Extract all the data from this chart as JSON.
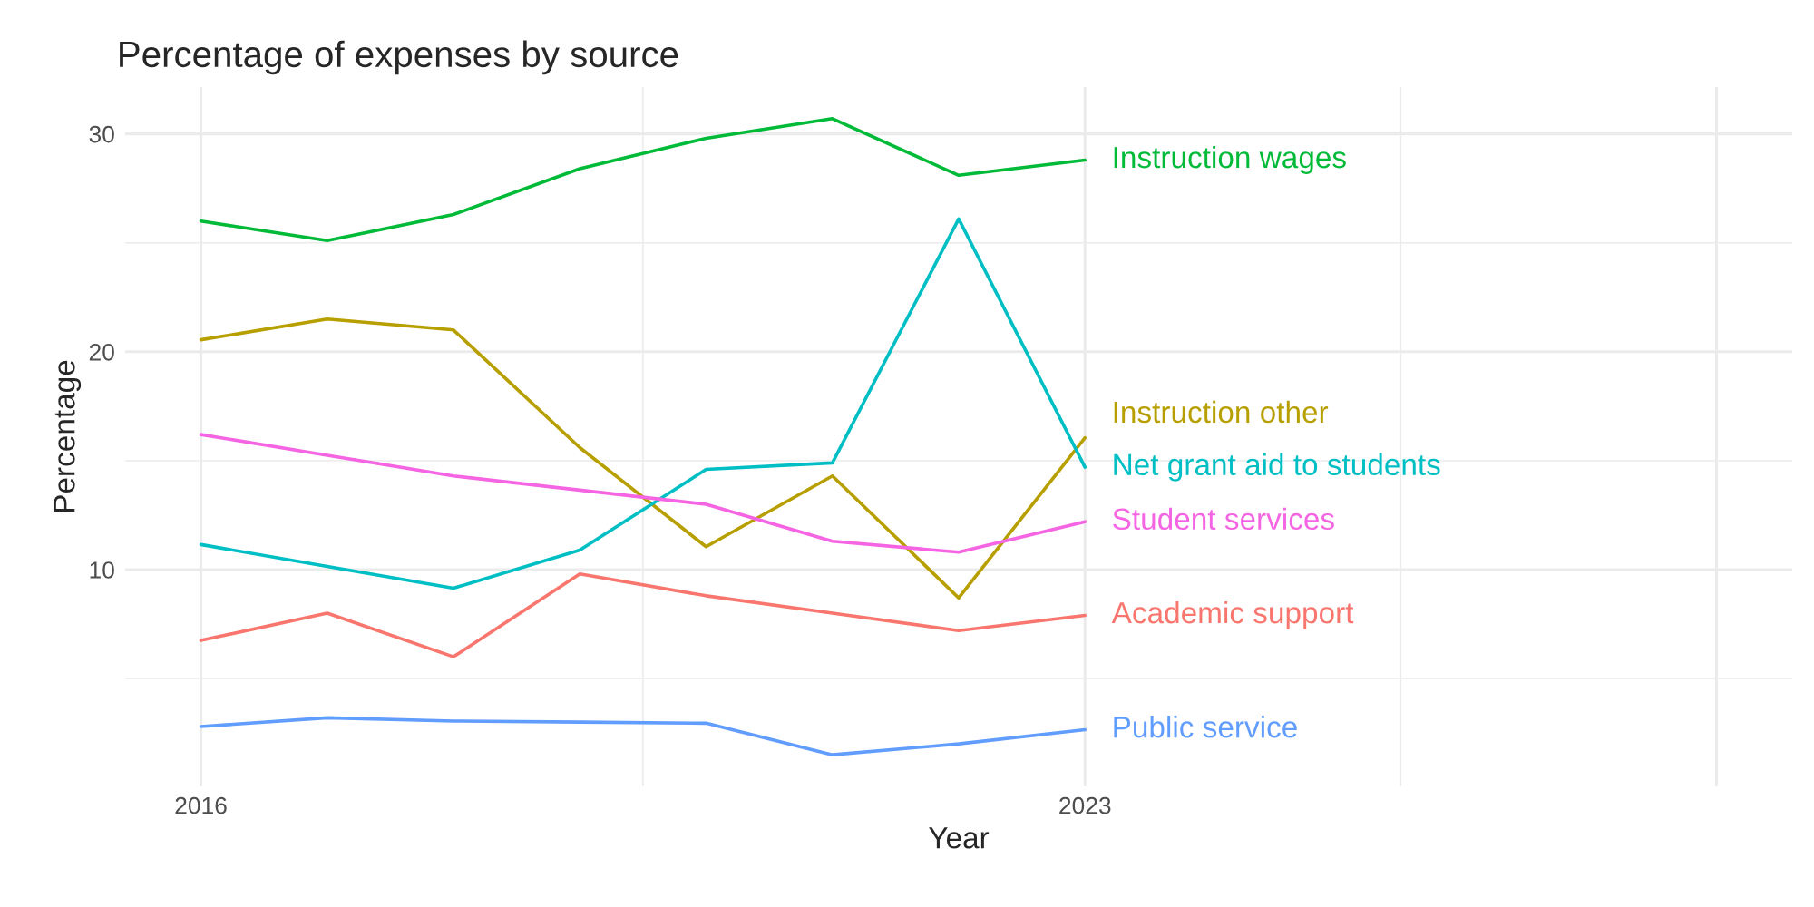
{
  "chart_data": {
    "type": "line",
    "title": "Percentage of expenses by source",
    "xlabel": "Year",
    "ylabel": "Percentage",
    "x": [
      2016,
      2017,
      2018,
      2019,
      2020,
      2021,
      2022,
      2023
    ],
    "xlim": [
      2015.4,
      2028.6
    ],
    "xticks": [
      2016,
      2023,
      {
        "value": 2028,
        "label": null
      }
    ],
    "ylim": [
      0.05,
      32.15
    ],
    "yticks": [
      10,
      20,
      30
    ],
    "grid": true,
    "legend": false,
    "marker": "none",
    "line_style": "solid",
    "series": [
      {
        "name": "Academic support",
        "color": "#f8766d",
        "values": [
          6.75,
          8.0,
          6.0,
          9.8,
          8.8,
          8.0,
          7.2,
          7.9
        ]
      },
      {
        "name": "Instruction other",
        "color": "#b79f00",
        "values": [
          20.55,
          21.5,
          21.0,
          15.6,
          11.05,
          14.3,
          8.7,
          16.05
        ]
      },
      {
        "name": "Instruction wages",
        "color": "#00ba38",
        "values": [
          26.0,
          25.1,
          26.3,
          28.4,
          29.8,
          30.7,
          28.1,
          28.8
        ]
      },
      {
        "name": "Net grant aid to students",
        "color": "#00bfc4",
        "values": [
          11.15,
          10.15,
          9.15,
          10.9,
          14.6,
          14.9,
          26.1,
          14.7
        ]
      },
      {
        "name": "Public service",
        "color": "#619cff",
        "values": [
          2.8,
          3.2,
          3.05,
          3.0,
          2.95,
          1.5,
          2.0,
          2.65
        ]
      },
      {
        "name": "Student services",
        "color": "#f564e3",
        "values": [
          16.2,
          15.25,
          14.3,
          13.65,
          13.0,
          11.3,
          10.8,
          12.2
        ]
      }
    ]
  }
}
